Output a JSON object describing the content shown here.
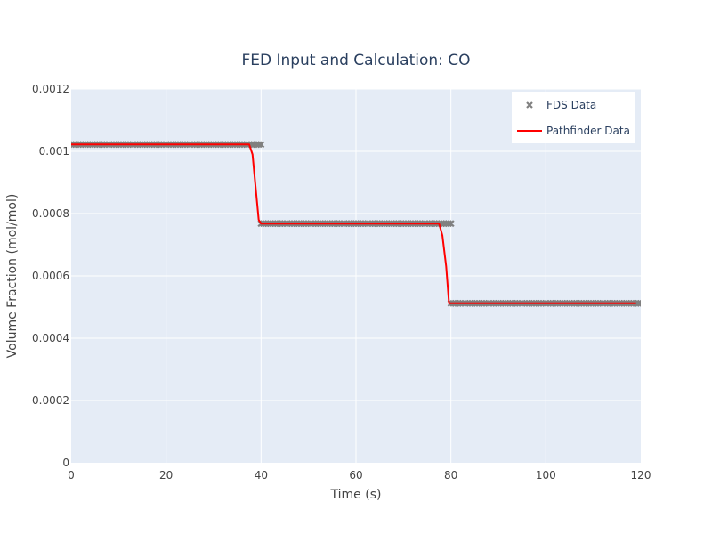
{
  "chart_data": {
    "type": "line",
    "title": "FED Input and Calculation: CO",
    "xlabel": "Time (s)",
    "ylabel": "Volume Fraction (mol/mol)",
    "xlim": [
      0,
      120
    ],
    "ylim": [
      0,
      0.0012
    ],
    "x_ticks": [
      "0",
      "20",
      "40",
      "60",
      "80",
      "100",
      "120"
    ],
    "y_ticks": [
      "0",
      "0.0002",
      "0.0004",
      "0.0006",
      "0.0008",
      "0.001",
      "0.0012"
    ],
    "grid": true,
    "legend_position": "top-right",
    "series": [
      {
        "name": "FDS Data",
        "mode": "markers",
        "marker": "x",
        "color": "#808080",
        "segments": [
          {
            "x_start": 0,
            "x_end": 40,
            "x_step": 0.5,
            "y": 0.001022
          },
          {
            "x_start": 40,
            "x_end": 80,
            "x_step": 0.5,
            "y": 0.000768
          },
          {
            "x_start": 80,
            "x_end": 120,
            "x_step": 0.5,
            "y": 0.000512
          }
        ]
      },
      {
        "name": "Pathfinder Data",
        "mode": "line",
        "color": "#ff0000",
        "x": [
          0,
          37.5,
          38.2,
          39,
          39.5,
          40,
          77.5,
          78.2,
          79,
          79.6,
          119
        ],
        "y": [
          0.001022,
          0.001022,
          0.00099,
          0.00086,
          0.00078,
          0.000768,
          0.000768,
          0.00073,
          0.00063,
          0.000512,
          0.000512
        ]
      }
    ]
  }
}
